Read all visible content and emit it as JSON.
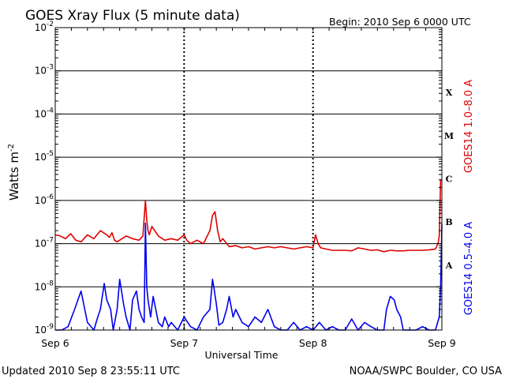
{
  "chart_data": {
    "type": "line",
    "title": "GOES Xray Flux (5 minute data)",
    "begin_label": "Begin:  2010 Sep 6 0000 UTC",
    "xlabel": "Universal Time",
    "ylabel_base": "Watts m",
    "ylabel_exp": "-2",
    "y_scale": "log",
    "ylim": [
      1e-09,
      0.01
    ],
    "x_unit": "days since Sep 6 0000 UTC",
    "xlim": [
      0,
      3
    ],
    "grid": true,
    "y_ticks": [
      {
        "value": 1e-09,
        "exp": "-9"
      },
      {
        "value": 1e-08,
        "exp": "-8"
      },
      {
        "value": 1e-07,
        "exp": "-7"
      },
      {
        "value": 1e-06,
        "exp": "-6"
      },
      {
        "value": 1e-05,
        "exp": "-5"
      },
      {
        "value": 0.0001,
        "exp": "-4"
      },
      {
        "value": 0.001,
        "exp": "-3"
      },
      {
        "value": 0.01,
        "exp": "-2"
      }
    ],
    "x_ticks": [
      {
        "value": 0,
        "label": "Sep 6"
      },
      {
        "value": 1,
        "label": "Sep 7"
      },
      {
        "value": 2,
        "label": "Sep 8"
      },
      {
        "value": 3,
        "label": "Sep 9"
      }
    ],
    "flare_classes": [
      {
        "label": "A",
        "value": 3.16e-08
      },
      {
        "label": "B",
        "value": 3.16e-07
      },
      {
        "label": "C",
        "value": 3.16e-06
      },
      {
        "label": "M",
        "value": 3.16e-05
      },
      {
        "label": "X",
        "value": 0.000316
      }
    ],
    "series": [
      {
        "name": "GOES14 1.0–8.0 A",
        "color": "#e00000",
        "x": [
          0.0,
          0.04,
          0.08,
          0.12,
          0.16,
          0.2,
          0.25,
          0.3,
          0.35,
          0.4,
          0.42,
          0.44,
          0.46,
          0.48,
          0.5,
          0.55,
          0.6,
          0.65,
          0.68,
          0.7,
          0.71,
          0.72,
          0.73,
          0.75,
          0.8,
          0.85,
          0.9,
          0.95,
          1.0,
          1.02,
          1.05,
          1.1,
          1.15,
          1.2,
          1.22,
          1.24,
          1.26,
          1.28,
          1.3,
          1.35,
          1.4,
          1.45,
          1.5,
          1.55,
          1.6,
          1.65,
          1.7,
          1.75,
          1.8,
          1.85,
          1.9,
          1.95,
          2.0,
          2.02,
          2.04,
          2.06,
          2.1,
          2.15,
          2.2,
          2.25,
          2.3,
          2.35,
          2.4,
          2.45,
          2.5,
          2.55,
          2.6,
          2.65,
          2.7,
          2.75,
          2.8,
          2.85,
          2.9,
          2.95,
          2.97,
          2.98,
          2.99,
          3.0
        ],
        "values": [
          1.6e-07,
          1.5e-07,
          1.3e-07,
          1.7e-07,
          1.2e-07,
          1.1e-07,
          1.6e-07,
          1.3e-07,
          2e-07,
          1.6e-07,
          1.4e-07,
          1.8e-07,
          1.2e-07,
          1.1e-07,
          1.2e-07,
          1.5e-07,
          1.3e-07,
          1.2e-07,
          1.5e-07,
          1e-06,
          3.5e-07,
          2e-07,
          1.6e-07,
          2.5e-07,
          1.5e-07,
          1.2e-07,
          1.3e-07,
          1.2e-07,
          1.6e-07,
          1.2e-07,
          1e-07,
          1.2e-07,
          1e-07,
          2e-07,
          4.5e-07,
          5.5e-07,
          2e-07,
          1.1e-07,
          1.3e-07,
          8.5e-08,
          9e-08,
          8e-08,
          8.5e-08,
          7.5e-08,
          8e-08,
          8.5e-08,
          8e-08,
          8.5e-08,
          8e-08,
          7.5e-08,
          8e-08,
          8.5e-08,
          8e-08,
          1.6e-07,
          1e-07,
          8e-08,
          7.5e-08,
          7e-08,
          7e-08,
          7e-08,
          6.8e-08,
          8e-08,
          7.5e-08,
          7e-08,
          7.2e-08,
          6.5e-08,
          7e-08,
          6.8e-08,
          6.8e-08,
          7e-08,
          7e-08,
          7e-08,
          7.2e-08,
          7.5e-08,
          1e-07,
          1.5e-07,
          3e-06,
          2.9e-06
        ]
      },
      {
        "name": "GOES14 0.5–4.0 A",
        "color": "#0000ee",
        "x": [
          0.0,
          0.05,
          0.1,
          0.15,
          0.2,
          0.25,
          0.3,
          0.33,
          0.35,
          0.38,
          0.4,
          0.43,
          0.45,
          0.48,
          0.5,
          0.53,
          0.55,
          0.58,
          0.6,
          0.63,
          0.65,
          0.67,
          0.69,
          0.7,
          0.71,
          0.72,
          0.74,
          0.76,
          0.78,
          0.8,
          0.83,
          0.85,
          0.88,
          0.9,
          0.95,
          1.0,
          1.05,
          1.1,
          1.15,
          1.2,
          1.22,
          1.23,
          1.25,
          1.27,
          1.3,
          1.33,
          1.35,
          1.38,
          1.4,
          1.45,
          1.5,
          1.55,
          1.6,
          1.65,
          1.7,
          1.75,
          1.8,
          1.85,
          1.9,
          1.95,
          2.0,
          2.05,
          2.1,
          2.15,
          2.2,
          2.25,
          2.3,
          2.35,
          2.4,
          2.45,
          2.5,
          2.55,
          2.57,
          2.6,
          2.63,
          2.65,
          2.68,
          2.7,
          2.75,
          2.8,
          2.85,
          2.9,
          2.95,
          2.98,
          2.99,
          3.0
        ],
        "values": [
          1e-09,
          1e-09,
          1.2e-09,
          3e-09,
          8e-09,
          1.5e-09,
          1e-09,
          2e-09,
          3e-09,
          1.2e-08,
          5e-09,
          3e-09,
          1e-09,
          3e-09,
          1.5e-08,
          4e-09,
          2e-09,
          1e-09,
          5e-09,
          8e-09,
          3e-09,
          2e-09,
          1.5e-09,
          3e-07,
          1e-08,
          5e-09,
          2e-09,
          6e-09,
          3e-09,
          1.5e-09,
          1.2e-09,
          2e-09,
          1.2e-09,
          1.5e-09,
          1e-09,
          2e-09,
          1.2e-09,
          1e-09,
          2e-09,
          3e-09,
          1.5e-08,
          1e-08,
          4e-09,
          1.3e-09,
          1.5e-09,
          3e-09,
          6e-09,
          2e-09,
          3e-09,
          1.5e-09,
          1.2e-09,
          2e-09,
          1.5e-09,
          3e-09,
          1.2e-09,
          1e-09,
          1e-09,
          1.5e-09,
          1e-09,
          1.2e-09,
          1e-09,
          1.5e-09,
          1e-09,
          1.2e-09,
          1e-09,
          1e-09,
          1.8e-09,
          1e-09,
          1.5e-09,
          1.2e-09,
          1e-09,
          1e-09,
          3e-09,
          6e-09,
          5e-09,
          3e-09,
          2e-09,
          1e-09,
          1e-09,
          1e-09,
          1.2e-09,
          1e-09,
          1e-09,
          2e-09,
          1e-08,
          2.8e-07
        ]
      }
    ]
  },
  "footer": {
    "updated": "Updated 2010 Sep  8 23:55:11 UTC",
    "credit": "NOAA/SWPC Boulder, CO USA"
  }
}
